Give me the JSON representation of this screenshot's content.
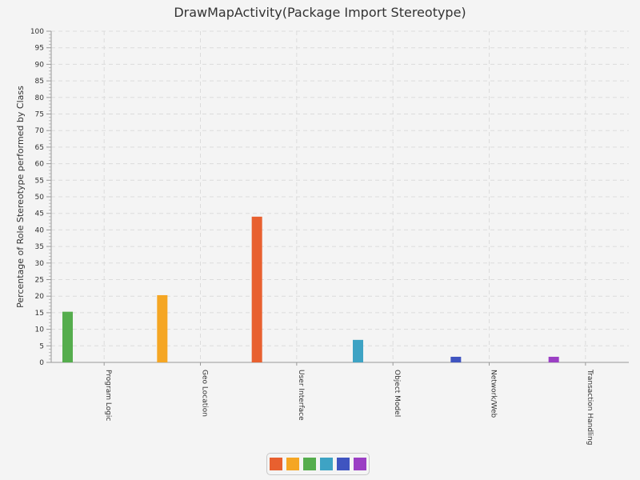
{
  "chart_data": {
    "type": "bar",
    "title": "DrawMapActivity(Package Import Stereotype)",
    "xlabel": "",
    "ylabel": "Percentage of Role Stereotype performed by Class",
    "ylim": [
      0,
      100
    ],
    "ytick_step": 5,
    "categories": [
      "Program Logic",
      "Geo Location",
      "User Interface",
      "Object Model",
      "Network/Web",
      "Transaction Handling"
    ],
    "series": [
      {
        "color": "#e8602f",
        "values": [
          0,
          0,
          44,
          0,
          0,
          0
        ]
      },
      {
        "color": "#f5a623",
        "values": [
          0,
          20.3,
          0,
          0,
          0,
          0
        ]
      },
      {
        "color": "#55ad4d",
        "values": [
          15.3,
          0,
          0,
          0,
          0,
          0
        ]
      },
      {
        "color": "#3ea3c4",
        "values": [
          0,
          0,
          0,
          6.8,
          0,
          0
        ]
      },
      {
        "color": "#3f54c0",
        "values": [
          0,
          0,
          0,
          0,
          1.7,
          0
        ]
      },
      {
        "color": "#9b3fc4",
        "values": [
          0,
          0,
          0,
          0,
          0,
          1.7
        ]
      }
    ],
    "grid": true,
    "legend": "bottom"
  }
}
